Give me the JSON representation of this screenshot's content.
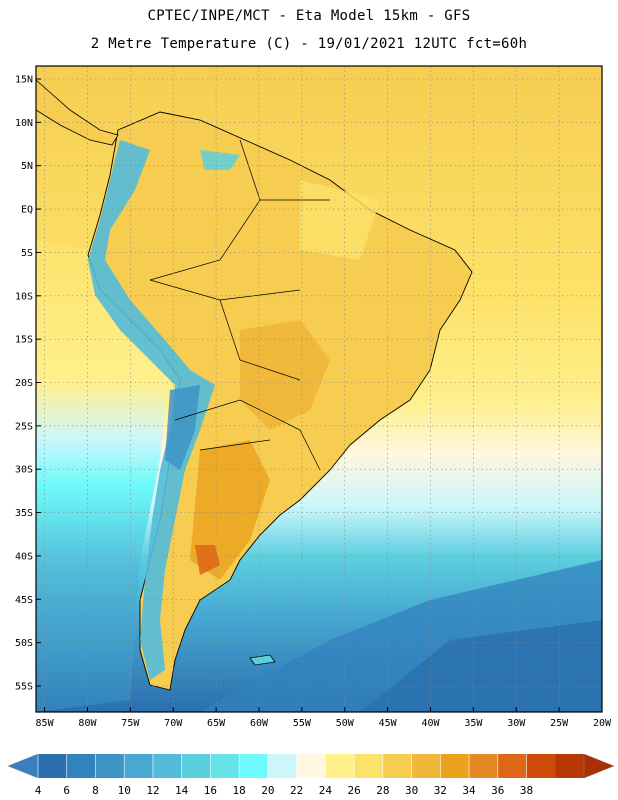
{
  "header": {
    "line1": "CPTEC/INPE/MCT -  Eta Model 15km - GFS",
    "line2": "2 Metre Temperature (C) - 19/01/2021 12UTC fct=60h"
  },
  "map": {
    "lat_labels": [
      "15N",
      "10N",
      "5N",
      "EQ",
      "5S",
      "10S",
      "15S",
      "20S",
      "25S",
      "30S",
      "35S",
      "40S",
      "45S",
      "50S",
      "55S"
    ],
    "lon_labels": [
      "85W",
      "80W",
      "75W",
      "70W",
      "65W",
      "60W",
      "55W",
      "50W",
      "45W",
      "40W",
      "35W",
      "30W",
      "25W",
      "20W"
    ],
    "lat_values": [
      15,
      10,
      5,
      0,
      -5,
      -10,
      -15,
      -20,
      -25,
      -30,
      -35,
      -40,
      -45,
      -50,
      -55
    ],
    "lon_values": [
      -85,
      -80,
      -75,
      -70,
      -65,
      -60,
      -55,
      -50,
      -45,
      -40,
      -35,
      -30,
      -25,
      -20
    ],
    "lat_range": [
      -58,
      16.5
    ],
    "lon_range": [
      -86,
      -20
    ],
    "quantity": "2 Metre Temperature",
    "units": "C"
  },
  "colorbar": {
    "labels": [
      "4",
      "6",
      "8",
      "10",
      "12",
      "14",
      "16",
      "18",
      "20",
      "22",
      "24",
      "26",
      "28",
      "30",
      "32",
      "34",
      "36",
      "38"
    ],
    "colors": [
      "#2b6fae",
      "#3182bd",
      "#3d94c5",
      "#47a9d2",
      "#52bbd9",
      "#5ccfdf",
      "#66e3e8",
      "#6efafa",
      "#cdf6fb",
      "#fff7e0",
      "#fff08c",
      "#fde26a",
      "#f6cd50",
      "#f0b73a",
      "#eba31e",
      "#e58723",
      "#df6818",
      "#cd4a08",
      "#b83805"
    ],
    "under_color": "#3a7fbf",
    "over_color": "#a93006"
  }
}
